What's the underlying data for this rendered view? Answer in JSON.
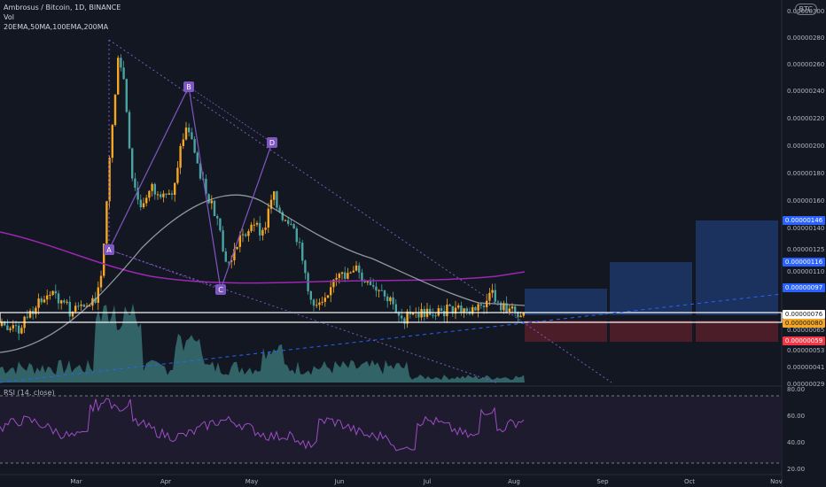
{
  "header": {
    "title": "Ambrosus / Bitcoin, 1D, BINANCE",
    "vol": "Vol",
    "indicators": "20EMA,50MA,100EMA,200MA",
    "currency_badge": "BTC"
  },
  "rsi": {
    "label": "RSI (14, close)",
    "ticks": [
      "80.00",
      "60.00",
      "40.00",
      "20.00"
    ]
  },
  "price_axis": {
    "ticks": [
      "0.00000300",
      "0.00000280",
      "0.00000260",
      "0.00000240",
      "0.00000220",
      "0.00000200",
      "0.00000180",
      "0.00000160",
      "0.00000140",
      "0.00000125",
      "0.00000110",
      "0.00000065",
      "0.00000053",
      "0.00000041",
      "0.00000029"
    ],
    "tags": [
      {
        "text": "0.00000146",
        "color": "#2962ff"
      },
      {
        "text": "0.00000116",
        "color": "#2962ff"
      },
      {
        "text": "0.00000097",
        "color": "#2962ff"
      },
      {
        "text": "0.00000076",
        "color": "#ffffff"
      },
      {
        "text": "0.00000059",
        "color": "#f23645"
      }
    ],
    "current_price": "0.00000080"
  },
  "time_axis": {
    "labels": [
      "Mar",
      "Apr",
      "May",
      "Jun",
      "Jul",
      "Aug",
      "Sep",
      "Oct",
      "Nov"
    ]
  },
  "pattern_points": [
    "A",
    "B",
    "C",
    "D"
  ],
  "colors": {
    "up": "#f5a623",
    "down": "#4aa3a0",
    "ma200": "#9c27b0",
    "ma50": "#b2b5be",
    "pattern": "#7e57c2",
    "box_blue": "#1e3a6e",
    "box_red": "#5a1f2a"
  }
}
